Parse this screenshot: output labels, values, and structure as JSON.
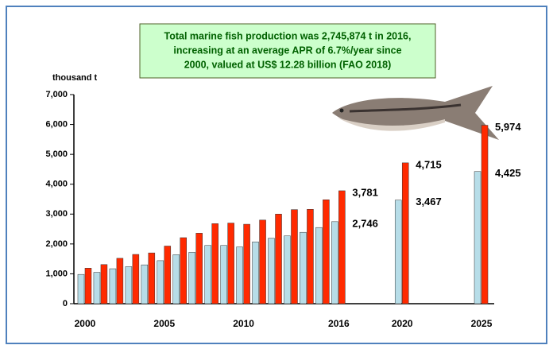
{
  "chart_data": {
    "type": "bar",
    "annotation": [
      "Total marine fish production was 2,745,874 t in 2016,",
      "increasing at an average APR of 6.7%/year since",
      "2000, valued at US$ 12.28 billion (FAO 2018)"
    ],
    "y_label": "thousand t",
    "x": [
      2000,
      2001,
      2002,
      2003,
      2004,
      2005,
      2006,
      2007,
      2008,
      2009,
      2010,
      2011,
      2012,
      2013,
      2014,
      2015,
      2016,
      2020,
      2025
    ],
    "series": [
      {
        "color": "#b7dde8",
        "label_color": "#1f1f8f",
        "values": [
          980,
          1050,
          1170,
          1240,
          1300,
          1440,
          1640,
          1720,
          1950,
          1950,
          1900,
          2070,
          2190,
          2270,
          2390,
          2550,
          2746,
          3467,
          4425
        ],
        "value_labels": [
          null,
          null,
          null,
          null,
          null,
          null,
          null,
          null,
          null,
          null,
          null,
          null,
          null,
          null,
          null,
          null,
          "2,746",
          "3,467",
          "4,425"
        ]
      },
      {
        "color": "#ff2a00",
        "label_color": "#ff0000",
        "values": [
          1190,
          1310,
          1520,
          1650,
          1700,
          1930,
          2210,
          2360,
          2680,
          2700,
          2660,
          2800,
          3000,
          3150,
          3160,
          3480,
          3781,
          4715,
          5974
        ],
        "value_labels": [
          null,
          null,
          null,
          null,
          null,
          null,
          null,
          null,
          null,
          null,
          null,
          null,
          null,
          null,
          null,
          null,
          "3,781",
          "4,715",
          "5,974"
        ]
      }
    ],
    "xlim": [
      1999.3,
      2025.8
    ],
    "xticks": [
      2000,
      2005,
      2010,
      2016,
      2020,
      2025
    ],
    "ylim": [
      0,
      7000
    ],
    "yticks": [
      0,
      {
        "value": 1000,
        "label": "1,000"
      },
      {
        "value": 2000,
        "label": "2,000"
      },
      {
        "value": 3000,
        "label": "3,000"
      },
      {
        "value": 4000,
        "label": "4,000"
      },
      {
        "value": 5000,
        "label": "5,000"
      },
      {
        "value": 6000,
        "label": "6,000"
      },
      {
        "value": 7000,
        "label": "7,000"
      }
    ],
    "grid": false
  }
}
